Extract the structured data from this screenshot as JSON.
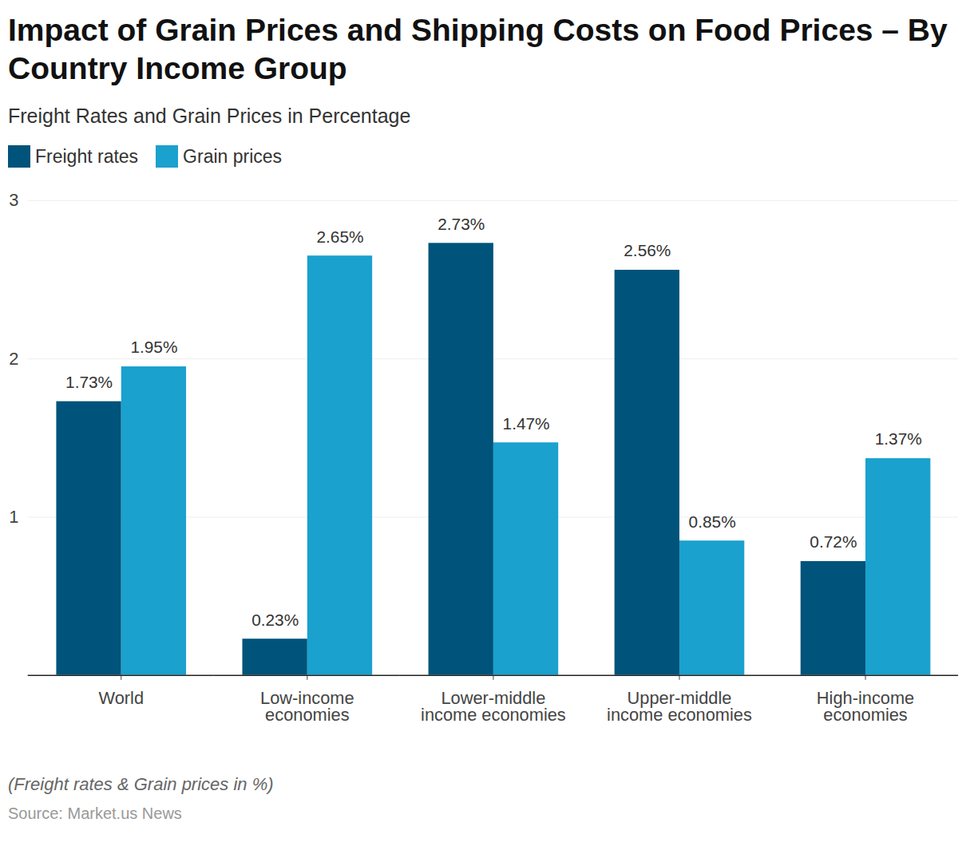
{
  "chart_data": {
    "type": "bar",
    "title": "Impact of Grain Prices and Shipping Costs on Food Prices – By Country Income Group",
    "subtitle": "Freight Rates and Grain Prices in Percentage",
    "caption": "(Freight rates & Grain prices in %)",
    "source": "Source: Market.us News",
    "categories": [
      "World",
      "Low-income economies",
      "Lower-middle income economies",
      "Upper-middle income economies",
      "High-income economies"
    ],
    "series": [
      {
        "name": "Freight rates",
        "color": "#00537a",
        "values": [
          1.73,
          0.23,
          2.73,
          2.56,
          0.72
        ],
        "value_labels": [
          "1.73%",
          "0.23%",
          "2.73%",
          "2.56%",
          "0.72%"
        ]
      },
      {
        "name": "Grain prices",
        "color": "#1aa1ce",
        "values": [
          1.95,
          2.65,
          1.47,
          0.85,
          1.37
        ],
        "value_labels": [
          "1.95%",
          "2.65%",
          "1.47%",
          "0.85%",
          "1.37%"
        ]
      }
    ],
    "ylim": [
      0,
      3
    ],
    "yticks": [
      1,
      2,
      3
    ],
    "grid": true,
    "legend": "top-left",
    "data_labels": true
  }
}
